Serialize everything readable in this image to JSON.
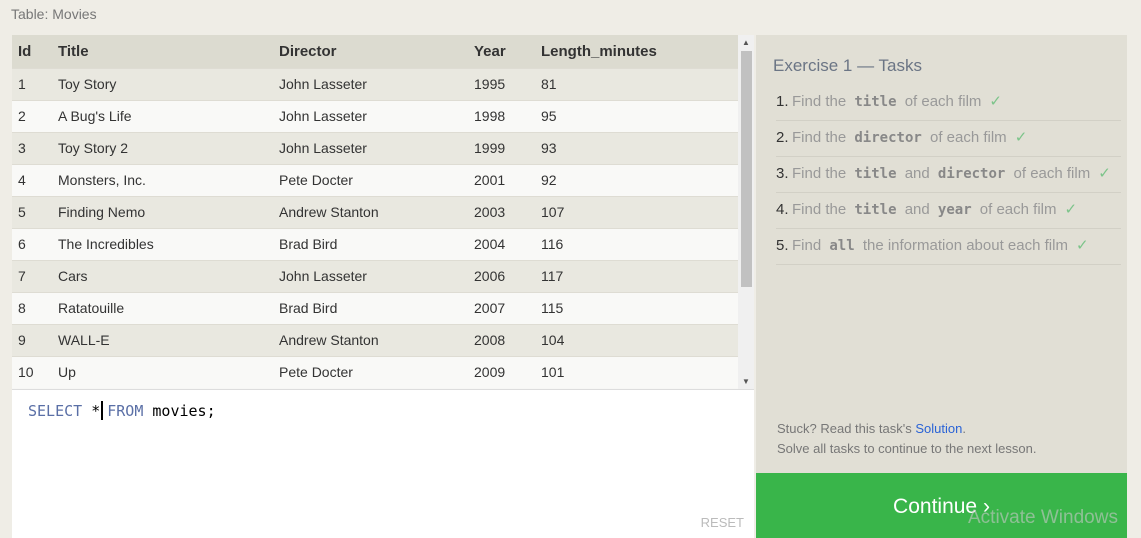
{
  "table_label": "Table: Movies",
  "columns": [
    "Id",
    "Title",
    "Director",
    "Year",
    "Length_minutes"
  ],
  "rows": [
    [
      "1",
      "Toy Story",
      "John Lasseter",
      "1995",
      "81"
    ],
    [
      "2",
      "A Bug's Life",
      "John Lasseter",
      "1998",
      "95"
    ],
    [
      "3",
      "Toy Story 2",
      "John Lasseter",
      "1999",
      "93"
    ],
    [
      "4",
      "Monsters, Inc.",
      "Pete Docter",
      "2001",
      "92"
    ],
    [
      "5",
      "Finding Nemo",
      "Andrew Stanton",
      "2003",
      "107"
    ],
    [
      "6",
      "The Incredibles",
      "Brad Bird",
      "2004",
      "116"
    ],
    [
      "7",
      "Cars",
      "John Lasseter",
      "2006",
      "117"
    ],
    [
      "8",
      "Ratatouille",
      "Brad Bird",
      "2007",
      "115"
    ],
    [
      "9",
      "WALL-E",
      "Andrew Stanton",
      "2008",
      "104"
    ],
    [
      "10",
      "Up",
      "Pete Docter",
      "2009",
      "101"
    ]
  ],
  "editor": {
    "kw1": "SELECT",
    "star": "*",
    "kw2": "FROM",
    "rest": "movies;",
    "reset": "RESET"
  },
  "panel": {
    "title": "Exercise 1 — Tasks",
    "tasks": [
      {
        "n": "1.",
        "parts": [
          "Find the ",
          "title",
          " of each film"
        ]
      },
      {
        "n": "2.",
        "parts": [
          "Find the ",
          "director",
          " of each film"
        ]
      },
      {
        "n": "3.",
        "parts": [
          "Find the ",
          "title",
          " and ",
          "director",
          " of each film"
        ]
      },
      {
        "n": "4.",
        "parts": [
          "Find the ",
          "title",
          " and ",
          "year",
          " of each film"
        ]
      },
      {
        "n": "5.",
        "parts": [
          "Find ",
          "all",
          " the information about each film"
        ]
      }
    ],
    "check": "✓",
    "stuck_prefix": "Stuck? Read this task's ",
    "solution": "Solution",
    "stuck_suffix": ".",
    "solve_all": "Solve all tasks to continue to the next lesson.",
    "continue": "Continue ›"
  },
  "watermark": "Activate Windows"
}
